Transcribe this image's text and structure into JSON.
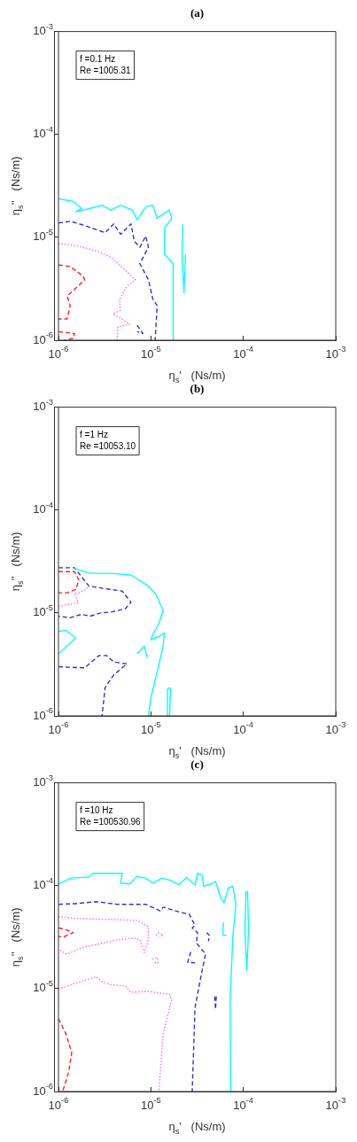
{
  "chart_data": [
    {
      "type": "line",
      "title": "(a)",
      "xlabel": "η$_{s}$'   (Ns/m)",
      "ylabel": "η$_{s}$''   (Ns/m)",
      "log": "xy",
      "grid": false,
      "xlim": [
        1e-06,
        0.001
      ],
      "ylim": [
        1e-06,
        0.001
      ],
      "xticks": [
        {
          "value": 1e-06,
          "label": "10$^{-6}$"
        },
        {
          "value": 1e-05,
          "label": "10$^{-5}$"
        },
        {
          "value": 0.0001,
          "label": "10$^{-4}$"
        },
        {
          "value": 0.001,
          "label": "10$^{-3}$"
        }
      ],
      "yticks": [
        {
          "value": 1e-06,
          "label": "10$^{-6}$"
        },
        {
          "value": 1e-05,
          "label": "10$^{-5}$"
        },
        {
          "value": 0.0001,
          "label": "10$^{-4}$"
        },
        {
          "value": 0.001,
          "label": "10$^{-3}$"
        }
      ],
      "annotations": [
        "f =0.1 Hz",
        "Re =1005.31"
      ],
      "series": [
        {
          "color": "#00ffff",
          "line_style": "solid",
          "x": [
            1e-06,
            1.44e-06,
            1.78e-06,
            1.54e-06,
            2.2e-06,
            2.96e-06,
            3.7e-06,
            4.7e-06,
            6.3e-06,
            7.1e-06,
            8.8e-06,
            1.05e-05,
            1.17e-05,
            1.31e-05,
            1.58e-05,
            1.68e-05,
            1.4e-05,
            1.4e-05,
            1.74e-05,
            1.74e-05
          ],
          "values": [
            2.37e-05,
            2.24e-05,
            1.91e-05,
            1.77e-05,
            1.91e-05,
            2.05e-05,
            1.84e-05,
            2.05e-05,
            1.84e-05,
            1.48e-05,
            1.98e-05,
            2.05e-05,
            1.53e-05,
            1.65e-05,
            1.84e-05,
            1.53e-05,
            1.23e-05,
            6.9e-06,
            5.55e-06,
            1e-06
          ]
        },
        {
          "color": "#00ffff",
          "line_style": "solid",
          "x": [
            2.22e-05,
            2.17e-05,
            2.28e-05,
            2.37e-05
          ],
          "values": [
            1.33e-05,
            6.9e-06,
            2.89e-06,
            6.9e-06
          ]
        },
        {
          "color": "#3333cc",
          "line_style": "dashed",
          "x": [
            1e-06,
            1.34e-06,
            1.78e-06,
            3.2e-06,
            3.96e-06,
            4.7e-06,
            6.1e-06,
            6.6e-06,
            7.6e-06,
            8.8e-06,
            9.4e-06,
            7.6e-06,
            9.4e-06,
            1.05e-05,
            1.17e-05,
            1.11e-05
          ],
          "values": [
            1.38e-05,
            1.43e-05,
            1.33e-05,
            1.11e-05,
            1.35e-05,
            1.07e-05,
            1.35e-05,
            9.2e-06,
            8e-06,
            1.03e-05,
            8e-06,
            5.55e-06,
            3.86e-06,
            2.5e-06,
            2.16e-06,
            1e-06
          ]
        },
        {
          "color": "#3333cc",
          "line_style": "dashed",
          "x": [
            7.1e-06,
            8.2e-06,
            7.1e-06
          ],
          "values": [
            1.4e-06,
            1.16e-06,
            1.21e-06
          ]
        },
        {
          "color": "#ff66ff",
          "line_style": "dotted",
          "x": [
            1e-06,
            1.54e-06,
            2.56e-06,
            3.7e-06,
            5.7e-06,
            6.8e-06,
            5.5e-06,
            4.6e-06,
            4.65e-06,
            3.9e-06,
            5.1e-06,
            5.9e-06,
            4.4e-06,
            4.3e-06
          ],
          "values": [
            8.7e-06,
            8.3e-06,
            7.4e-06,
            6.4e-06,
            4.47e-06,
            3.86e-06,
            3.34e-06,
            2.5e-06,
            1.94e-06,
            1.8e-06,
            1.56e-06,
            1.42e-06,
            1.35e-06,
            1e-06
          ]
        },
        {
          "color": "#ff2020",
          "line_style": "dashed",
          "x": [
            1e-06,
            1.34e-06,
            1.85e-06,
            1.92e-06,
            1.54e-06,
            1.24e-06,
            1.34e-06,
            1.24e-06,
            1e-06
          ],
          "values": [
            5.4e-06,
            5.2e-06,
            4.2e-06,
            3.86e-06,
            3.2e-06,
            2.69e-06,
            2.16e-06,
            1.61e-06,
            1.61e-06
          ]
        },
        {
          "color": "#ff2020",
          "line_style": "dashed",
          "x": [
            1e-06,
            1.49e-06,
            1.44e-06,
            1.16e-06
          ],
          "values": [
            1.21e-06,
            1.16e-06,
            1.04e-06,
            1e-06
          ]
        }
      ]
    },
    {
      "type": "line",
      "title": "(b)",
      "xlabel": "η$_{s}$'   (Ns/m)",
      "ylabel": "η$_{s}$''   (Ns/m)",
      "log": "xy",
      "grid": false,
      "xlim": [
        1e-06,
        0.001
      ],
      "ylim": [
        1e-06,
        0.001
      ],
      "xticks": [
        {
          "value": 1e-06,
          "label": "10$^{-6}$"
        },
        {
          "value": 1e-05,
          "label": "10$^{-5}$"
        },
        {
          "value": 0.0001,
          "label": "10$^{-4}$"
        },
        {
          "value": 0.001,
          "label": "10$^{-3}$"
        }
      ],
      "yticks": [
        {
          "value": 1e-06,
          "label": "10$^{-6}$"
        },
        {
          "value": 1e-05,
          "label": "10$^{-5}$"
        },
        {
          "value": 0.0001,
          "label": "10$^{-4}$"
        },
        {
          "value": 0.001,
          "label": "10$^{-3}$"
        }
      ],
      "annotations": [
        "f =1 Hz",
        "Re =10053.10"
      ],
      "series": [
        {
          "color": "#00ffff",
          "line_style": "solid",
          "x": [
            1.49e-06,
            2.2e-06,
            3.7e-06,
            6.1e-06,
            9.4e-06,
            1.13e-05,
            1.26e-05,
            1.36e-05,
            1.22e-05,
            1.05e-05,
            1e-05,
            1.22e-05,
            1.4e-05,
            1.36e-05,
            1.17e-05,
            1e-05,
            9.4e-06
          ],
          "values": [
            2.71e-05,
            2.43e-05,
            2.43e-05,
            2.34e-05,
            1.82e-05,
            1.52e-05,
            1.23e-05,
            1.06e-05,
            7.9e-06,
            6.2e-06,
            5.5e-06,
            5.9e-06,
            6.4e-06,
            4.8e-06,
            2.69e-06,
            1.51e-06,
            1e-06
          ]
        },
        {
          "color": "#00ffff",
          "line_style": "solid",
          "x": [
            1e-06,
            1.2e-06,
            1.54e-06,
            1e-06
          ],
          "values": [
            6.6e-06,
            6.8e-06,
            5.7e-06,
            4e-06
          ]
        },
        {
          "color": "#00ffff",
          "line_style": "solid",
          "x": [
            7.1e-06,
            8.5e-06,
            9.1e-06
          ],
          "values": [
            4e-06,
            4.8e-06,
            3.7e-06
          ]
        },
        {
          "color": "#00ffff",
          "line_style": "solid",
          "x": [
            1.51e-05,
            1.51e-05,
            1.58e-05,
            1.63e-05,
            1.59e-05
          ],
          "values": [
            1e-06,
            1.81e-06,
            1.88e-06,
            1.81e-06,
            1e-06
          ]
        },
        {
          "color": "#3333cc",
          "line_style": "dashed",
          "x": [
            1e-06,
            1.49e-06,
            2.14e-06,
            4.9e-06,
            6.1e-06,
            5.3e-06,
            3.7e-06,
            2.86e-06,
            2.2e-06,
            1.78e-06,
            1.34e-06,
            1e-06
          ],
          "values": [
            2.75e-05,
            2.75e-05,
            1.82e-05,
            1.63e-05,
            1.27e-05,
            1.1e-05,
            1.02e-05,
            1e-05,
            9.3e-06,
            9.7e-06,
            9e-06,
            9.3e-06
          ]
        },
        {
          "color": "#3333cc",
          "line_style": "dashed",
          "x": [
            1e-06,
            1.92e-06,
            2.75e-06,
            3.3e-06,
            3.96e-06,
            5.5e-06,
            3.96e-06,
            3.2e-06,
            2.96e-06
          ],
          "values": [
            3e-06,
            2.93e-06,
            3.86e-06,
            3.86e-06,
            3.34e-06,
            3.2e-06,
            2.5e-06,
            1.88e-06,
            1e-06
          ]
        },
        {
          "color": "#ff66ff",
          "line_style": "dotted",
          "x": [
            1e-06,
            1.64e-06,
            1.49e-06,
            1.85e-06,
            2.14e-06
          ],
          "values": [
            1.16e-05,
            1.26e-05,
            1.54e-05,
            1.63e-05,
            1.82e-05
          ]
        },
        {
          "color": "#ff2020",
          "line_style": "dashed",
          "x": [
            1e-06,
            1.49e-06,
            1.66e-06,
            1.54e-06,
            1.24e-06,
            1e-06
          ],
          "values": [
            2.52e-05,
            2.52e-05,
            2.1e-05,
            1.69e-05,
            1.57e-05,
            1.57e-05
          ]
        }
      ]
    },
    {
      "type": "line",
      "title": "(c)",
      "xlabel": "η$_{s}$'   (Ns/m)",
      "ylabel": "η$_{s}$''   (Ns/m)",
      "log": "xy",
      "grid": false,
      "xlim": [
        1e-06,
        0.001
      ],
      "ylim": [
        1e-06,
        0.001
      ],
      "xticks": [
        {
          "value": 1e-06,
          "label": "10$^{-6}$"
        },
        {
          "value": 1e-05,
          "label": "10$^{-5}$"
        },
        {
          "value": 0.0001,
          "label": "10$^{-4}$"
        },
        {
          "value": 0.001,
          "label": "10$^{-3}$"
        }
      ],
      "yticks": [
        {
          "value": 1e-06,
          "label": "10$^{-6}$"
        },
        {
          "value": 1e-05,
          "label": "10$^{-5}$"
        },
        {
          "value": 0.0001,
          "label": "10$^{-4}$"
        },
        {
          "value": 0.001,
          "label": "10$^{-3}$"
        }
      ],
      "annotations": [
        "f =10 Hz",
        "Re =100530.96"
      ],
      "series": [
        {
          "color": "#00ffff",
          "line_style": "solid",
          "x": [
            1e-06,
            1.34e-06,
            2.14e-06,
            2.38e-06,
            4.9e-06,
            4.7e-06,
            5.9e-06,
            7.1e-06,
            8.8e-06,
            1.05e-05,
            1.31e-05,
            1.58e-05,
            2.02e-05,
            2.42e-05,
            3e-05,
            3.2e-05,
            3.6e-05,
            3.7e-05,
            4.5e-05,
            5e-05,
            5.8e-05,
            6.2e-05,
            6.9e-05,
            7.7e-05,
            8.3e-05,
            7.7e-05,
            7.2e-05,
            7.3e-05
          ],
          "values": [
            0.000104,
            0.000118,
            0.000122,
            0.000132,
            0.000132,
            0.000106,
            0.000104,
            0.000124,
            0.000118,
            0.000106,
            0.000118,
            0.000114,
            0.000102,
            0.00012,
            0.000102,
            0.000132,
            0.000127,
            9.9e-05,
            0.000104,
            0.00011,
            7.4e-05,
            6.9e-05,
            9.5e-05,
            9.9e-05,
            6.6e-05,
            3.2e-05,
            7.6e-06,
            1e-06
          ]
        },
        {
          "color": "#00ffff",
          "line_style": "solid",
          "x": [
            0.000107,
            0.000104,
            0.000109,
            0.000114,
            0.000111
          ],
          "values": [
            8.9e-05,
            3.7e-05,
            1.5e-05,
            3.7e-05,
            8.9e-05
          ]
        },
        {
          "color": "#00ffff",
          "line_style": "solid",
          "x": [
            6.1e-05,
            6e-05,
            6.6e-05
          ],
          "values": [
            4.4e-05,
            3.3e-05,
            3.3e-05
          ]
        },
        {
          "color": "#3333cc",
          "line_style": "dashed",
          "x": [
            1e-06,
            1.54e-06,
            2.56e-06,
            4.3e-06,
            8.8e-06,
            1.26e-05,
            1.36e-05,
            2.09e-05,
            2.6e-05,
            3e-05,
            2.8e-05,
            3.2e-05,
            3.1e-05,
            3.7e-05,
            3.9e-05,
            3.5e-05,
            3e-05,
            2.8e-05
          ],
          "values": [
            6.6e-05,
            6.7e-05,
            7e-05,
            6.6e-05,
            6.6e-05,
            5.7e-05,
            6.2e-05,
            5.5e-05,
            5.3e-05,
            4.1e-05,
            3.9e-05,
            3.5e-05,
            2.78e-05,
            2.3e-05,
            2.16e-05,
            1.35e-05,
            6.5e-06,
            1e-06
          ]
        },
        {
          "color": "#3333cc",
          "line_style": "dashed",
          "x": [
            4e-05,
            4.3e-05,
            4.2e-05
          ],
          "values": [
            3.5e-05,
            3.3e-05,
            2.88e-05
          ]
        },
        {
          "color": "#3333cc",
          "line_style": "dashed",
          "x": [
            2.7e-05,
            2.5e-05,
            3e-05
          ],
          "values": [
            2.27e-05,
            1.8e-05,
            1.78e-05
          ]
        },
        {
          "color": "#3333cc",
          "line_style": "dashed",
          "x": [
            4.9e-05,
            5e-05,
            5.1e-05
          ],
          "values": [
            8.4e-06,
            6.3e-06,
            8.4e-06
          ]
        },
        {
          "color": "#ff66ff",
          "line_style": "dotted",
          "x": [
            1e-06,
            1.54e-06,
            3.7e-06,
            7.1e-06,
            9.4e-06,
            9.4e-06,
            8.5e-06,
            7.6e-06,
            6.6e-06,
            4.6e-06,
            2.56e-06,
            1.78e-06,
            1.24e-06,
            1e-06
          ],
          "values": [
            5e-05,
            4.8e-05,
            4.7e-05,
            4.6e-05,
            4e-05,
            3e-05,
            2.24e-05,
            3e-05,
            3.1e-05,
            3e-05,
            2.68e-05,
            2.5e-05,
            2.16e-05,
            2.4e-05
          ]
        },
        {
          "color": "#ff66ff",
          "line_style": "dotted",
          "x": [
            1e-06,
            1.54e-06,
            2.56e-06,
            2.96e-06,
            3.7e-06,
            5.3e-06,
            6.1e-06,
            9.4e-06,
            1.58e-05,
            1.68e-05,
            1.36e-05,
            1.22e-05
          ],
          "values": [
            9.9e-06,
            1.13e-05,
            1.3e-05,
            1.17e-05,
            1.09e-05,
            1.06e-05,
            9.2e-06,
            9.4e-06,
            8.8e-06,
            7.8e-06,
            3.67e-06,
            1e-06
          ]
        },
        {
          "color": "#ff66ff",
          "line_style": "dotted",
          "x": [
            1.13e-05,
            1.24e-05,
            1.36e-05,
            1.24e-05
          ],
          "values": [
            3.3e-05,
            3.5e-05,
            3.3e-05,
            3.2e-05
          ]
        },
        {
          "color": "#ff66ff",
          "line_style": "dotted",
          "x": [
            1.03e-05,
            1.17e-05,
            1.19e-05,
            1.05e-05
          ],
          "values": [
            1.94e-05,
            2e-05,
            1.78e-05,
            1.78e-05
          ]
        },
        {
          "color": "#ff2020",
          "line_style": "dashed",
          "x": [
            1e-06,
            1.24e-06,
            1.44e-06,
            1.16e-06,
            1e-06
          ],
          "values": [
            3.9e-05,
            3.7e-05,
            3.5e-05,
            3.2e-05,
            3.2e-05
          ]
        },
        {
          "color": "#ff2020",
          "line_style": "dashed",
          "x": [
            1e-06,
            1.2e-06,
            1.39e-06,
            1.29e-06,
            1.11e-06
          ],
          "values": [
            5.1e-06,
            3.67e-06,
            2.38e-06,
            1.54e-06,
            1e-06
          ]
        }
      ]
    }
  ]
}
